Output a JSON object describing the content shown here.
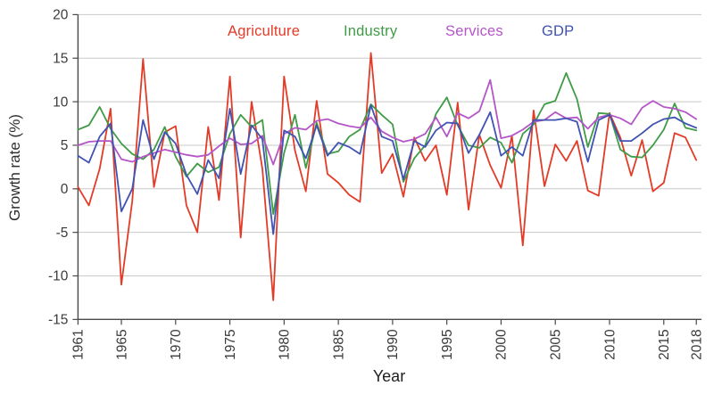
{
  "axes": {
    "y_label": "Growth rate (%)",
    "x_label": "Year"
  },
  "legend": {
    "items": [
      {
        "label": "Agriculture",
        "color": "#e23b27"
      },
      {
        "label": "Industry",
        "color": "#3f9b45"
      },
      {
        "label": "Services",
        "color": "#b455c8"
      },
      {
        "label": "GDP",
        "color": "#4053b2"
      }
    ]
  },
  "style_colors": {
    "gridline": "#c9c9c9",
    "axis": "#4a4a4a",
    "tick_text": "#3b3b3b"
  },
  "chart_data": {
    "type": "line",
    "title": "",
    "xlabel": "Year",
    "ylabel": "Growth rate (%)",
    "ylim": [
      -15,
      20
    ],
    "yticks": [
      20,
      15,
      10,
      5,
      0,
      -5,
      -10,
      -15
    ],
    "xticks": [
      1961,
      1965,
      1970,
      1975,
      1980,
      1985,
      1990,
      1995,
      2000,
      2005,
      2010,
      2015,
      2018
    ],
    "grid": "horizontal",
    "legend_position": "top",
    "x": [
      1961,
      1962,
      1963,
      1964,
      1965,
      1966,
      1967,
      1968,
      1969,
      1970,
      1971,
      1972,
      1973,
      1974,
      1975,
      1976,
      1977,
      1978,
      1979,
      1980,
      1981,
      1982,
      1983,
      1984,
      1985,
      1986,
      1987,
      1988,
      1989,
      1990,
      1991,
      1992,
      1993,
      1994,
      1995,
      1996,
      1997,
      1998,
      1999,
      2000,
      2001,
      2002,
      2003,
      2004,
      2005,
      2006,
      2007,
      2008,
      2009,
      2010,
      2011,
      2012,
      2013,
      2014,
      2015,
      2016,
      2017,
      2018
    ],
    "series": [
      {
        "name": "Agriculture",
        "color": "#e23b27",
        "values": [
          0.2,
          -1.9,
          2.3,
          9.2,
          -11.0,
          -1.4,
          14.9,
          0.2,
          6.5,
          7.2,
          -1.9,
          -5.0,
          7.1,
          -1.3,
          12.9,
          -5.6,
          10.0,
          2.3,
          -12.8,
          12.9,
          4.4,
          -0.3,
          10.1,
          1.7,
          0.7,
          -0.7,
          -1.5,
          15.6,
          1.8,
          4.0,
          -0.9,
          5.9,
          3.2,
          5.0,
          -0.7,
          9.9,
          -2.4,
          6.2,
          2.7,
          0.1,
          6.1,
          -6.5,
          9.0,
          0.3,
          5.1,
          3.2,
          5.5,
          -0.2,
          -0.8,
          8.7,
          5.9,
          1.5,
          5.6,
          -0.3,
          0.7,
          6.4,
          5.9,
          3.3
        ]
      },
      {
        "name": "Industry",
        "color": "#3f9b45",
        "values": [
          6.8,
          7.3,
          9.4,
          6.9,
          5.2,
          4.0,
          3.4,
          4.5,
          7.1,
          3.7,
          1.4,
          2.9,
          1.9,
          2.5,
          6.3,
          8.5,
          7.1,
          7.9,
          -2.9,
          4.1,
          8.5,
          2.4,
          7.6,
          4.0,
          4.3,
          6.0,
          6.8,
          9.7,
          8.5,
          7.4,
          0.8,
          3.5,
          5.0,
          8.6,
          10.5,
          7.3,
          5.0,
          4.7,
          5.9,
          5.3,
          3.0,
          6.3,
          7.4,
          9.7,
          10.1,
          13.3,
          10.3,
          4.8,
          8.7,
          8.6,
          4.5,
          3.7,
          3.6,
          5.0,
          6.8,
          9.8,
          7.0,
          6.7
        ]
      },
      {
        "name": "Services",
        "color": "#b455c8",
        "values": [
          5.0,
          5.4,
          5.5,
          5.5,
          3.4,
          3.1,
          3.7,
          4.1,
          4.5,
          4.2,
          3.9,
          3.7,
          3.9,
          4.9,
          5.8,
          5.1,
          5.2,
          6.1,
          2.8,
          6.3,
          7.0,
          6.8,
          7.8,
          8.0,
          7.5,
          7.2,
          7.0,
          8.2,
          6.6,
          5.9,
          5.4,
          5.7,
          6.3,
          8.2,
          6.0,
          8.7,
          8.1,
          8.9,
          12.5,
          5.8,
          6.1,
          6.8,
          7.7,
          7.9,
          8.8,
          8.1,
          8.2,
          6.9,
          8.2,
          8.5,
          8.1,
          7.4,
          9.3,
          10.1,
          9.4,
          9.2,
          8.8,
          8.0
        ]
      },
      {
        "name": "GDP",
        "color": "#4053b2",
        "values": [
          3.8,
          3.0,
          6.0,
          7.5,
          -2.6,
          0.0,
          7.9,
          3.4,
          6.5,
          5.2,
          1.6,
          -0.6,
          3.3,
          1.2,
          9.2,
          1.7,
          7.3,
          5.7,
          -5.2,
          6.7,
          6.0,
          3.5,
          7.3,
          3.8,
          5.3,
          4.8,
          4.0,
          9.6,
          6.0,
          5.5,
          1.1,
          5.5,
          4.8,
          6.7,
          7.6,
          7.5,
          4.1,
          6.2,
          8.8,
          3.8,
          4.8,
          3.8,
          7.9,
          7.9,
          7.9,
          8.1,
          7.7,
          3.1,
          7.9,
          8.5,
          5.5,
          5.5,
          6.4,
          7.4,
          8.0,
          8.2,
          7.5,
          7.0
        ]
      }
    ]
  }
}
